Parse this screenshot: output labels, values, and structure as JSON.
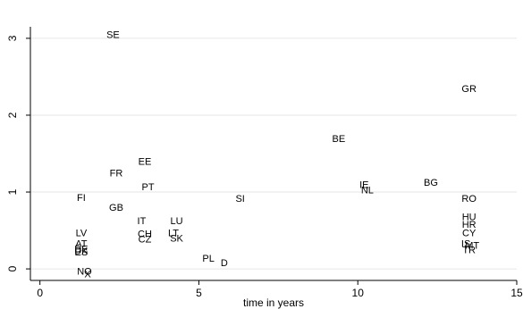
{
  "chart_data": {
    "type": "scatter",
    "marker": "label-only",
    "xlabel": "time in years",
    "ylabel": "",
    "xlim": [
      -0.3,
      15.0
    ],
    "ylim": [
      -0.15,
      3.15
    ],
    "xticks": [
      0,
      5,
      10,
      15
    ],
    "yticks": [
      0,
      1,
      2,
      3
    ],
    "grid": "horizontal",
    "points": [
      {
        "label": "SE",
        "x": 2.3,
        "y": 3.05
      },
      {
        "label": "GR",
        "x": 13.5,
        "y": 2.35
      },
      {
        "label": "BE",
        "x": 9.4,
        "y": 1.7
      },
      {
        "label": "EE",
        "x": 3.3,
        "y": 1.4
      },
      {
        "label": "FR",
        "x": 2.4,
        "y": 1.25
      },
      {
        "label": "BG",
        "x": 12.3,
        "y": 1.13
      },
      {
        "label": "IE",
        "x": 10.2,
        "y": 1.1
      },
      {
        "label": "PT",
        "x": 3.4,
        "y": 1.07
      },
      {
        "label": "NL",
        "x": 10.3,
        "y": 1.03
      },
      {
        "label": "FI",
        "x": 1.3,
        "y": 0.93
      },
      {
        "label": "SI",
        "x": 6.3,
        "y": 0.92
      },
      {
        "label": "RO",
        "x": 13.5,
        "y": 0.92
      },
      {
        "label": "GB",
        "x": 2.4,
        "y": 0.8
      },
      {
        "label": "HU",
        "x": 13.5,
        "y": 0.68
      },
      {
        "label": "IT",
        "x": 3.2,
        "y": 0.63
      },
      {
        "label": "LU",
        "x": 4.3,
        "y": 0.63
      },
      {
        "label": "HR",
        "x": 13.5,
        "y": 0.58
      },
      {
        "label": "LV",
        "x": 1.3,
        "y": 0.47
      },
      {
        "label": "LT",
        "x": 4.2,
        "y": 0.47
      },
      {
        "label": "CH",
        "x": 3.3,
        "y": 0.46
      },
      {
        "label": "CY",
        "x": 13.5,
        "y": 0.47
      },
      {
        "label": "SK",
        "x": 4.3,
        "y": 0.4
      },
      {
        "label": "CZ",
        "x": 3.3,
        "y": 0.39
      },
      {
        "label": "AT",
        "x": 1.3,
        "y": 0.33
      },
      {
        "label": "IS",
        "x": 13.4,
        "y": 0.33
      },
      {
        "label": "MT",
        "x": 13.6,
        "y": 0.31
      },
      {
        "label": "DE",
        "x": 1.3,
        "y": 0.26
      },
      {
        "label": "DK",
        "x": 1.3,
        "y": 0.24
      },
      {
        "label": "ES",
        "x": 1.3,
        "y": 0.22
      },
      {
        "label": "TR",
        "x": 13.5,
        "y": 0.25
      },
      {
        "label": "PL",
        "x": 5.3,
        "y": 0.14
      },
      {
        "label": "D",
        "x": 5.8,
        "y": 0.08
      },
      {
        "label": "NO",
        "x": 1.4,
        "y": -0.03
      },
      {
        "label": "X",
        "x": 1.5,
        "y": -0.06
      }
    ]
  }
}
